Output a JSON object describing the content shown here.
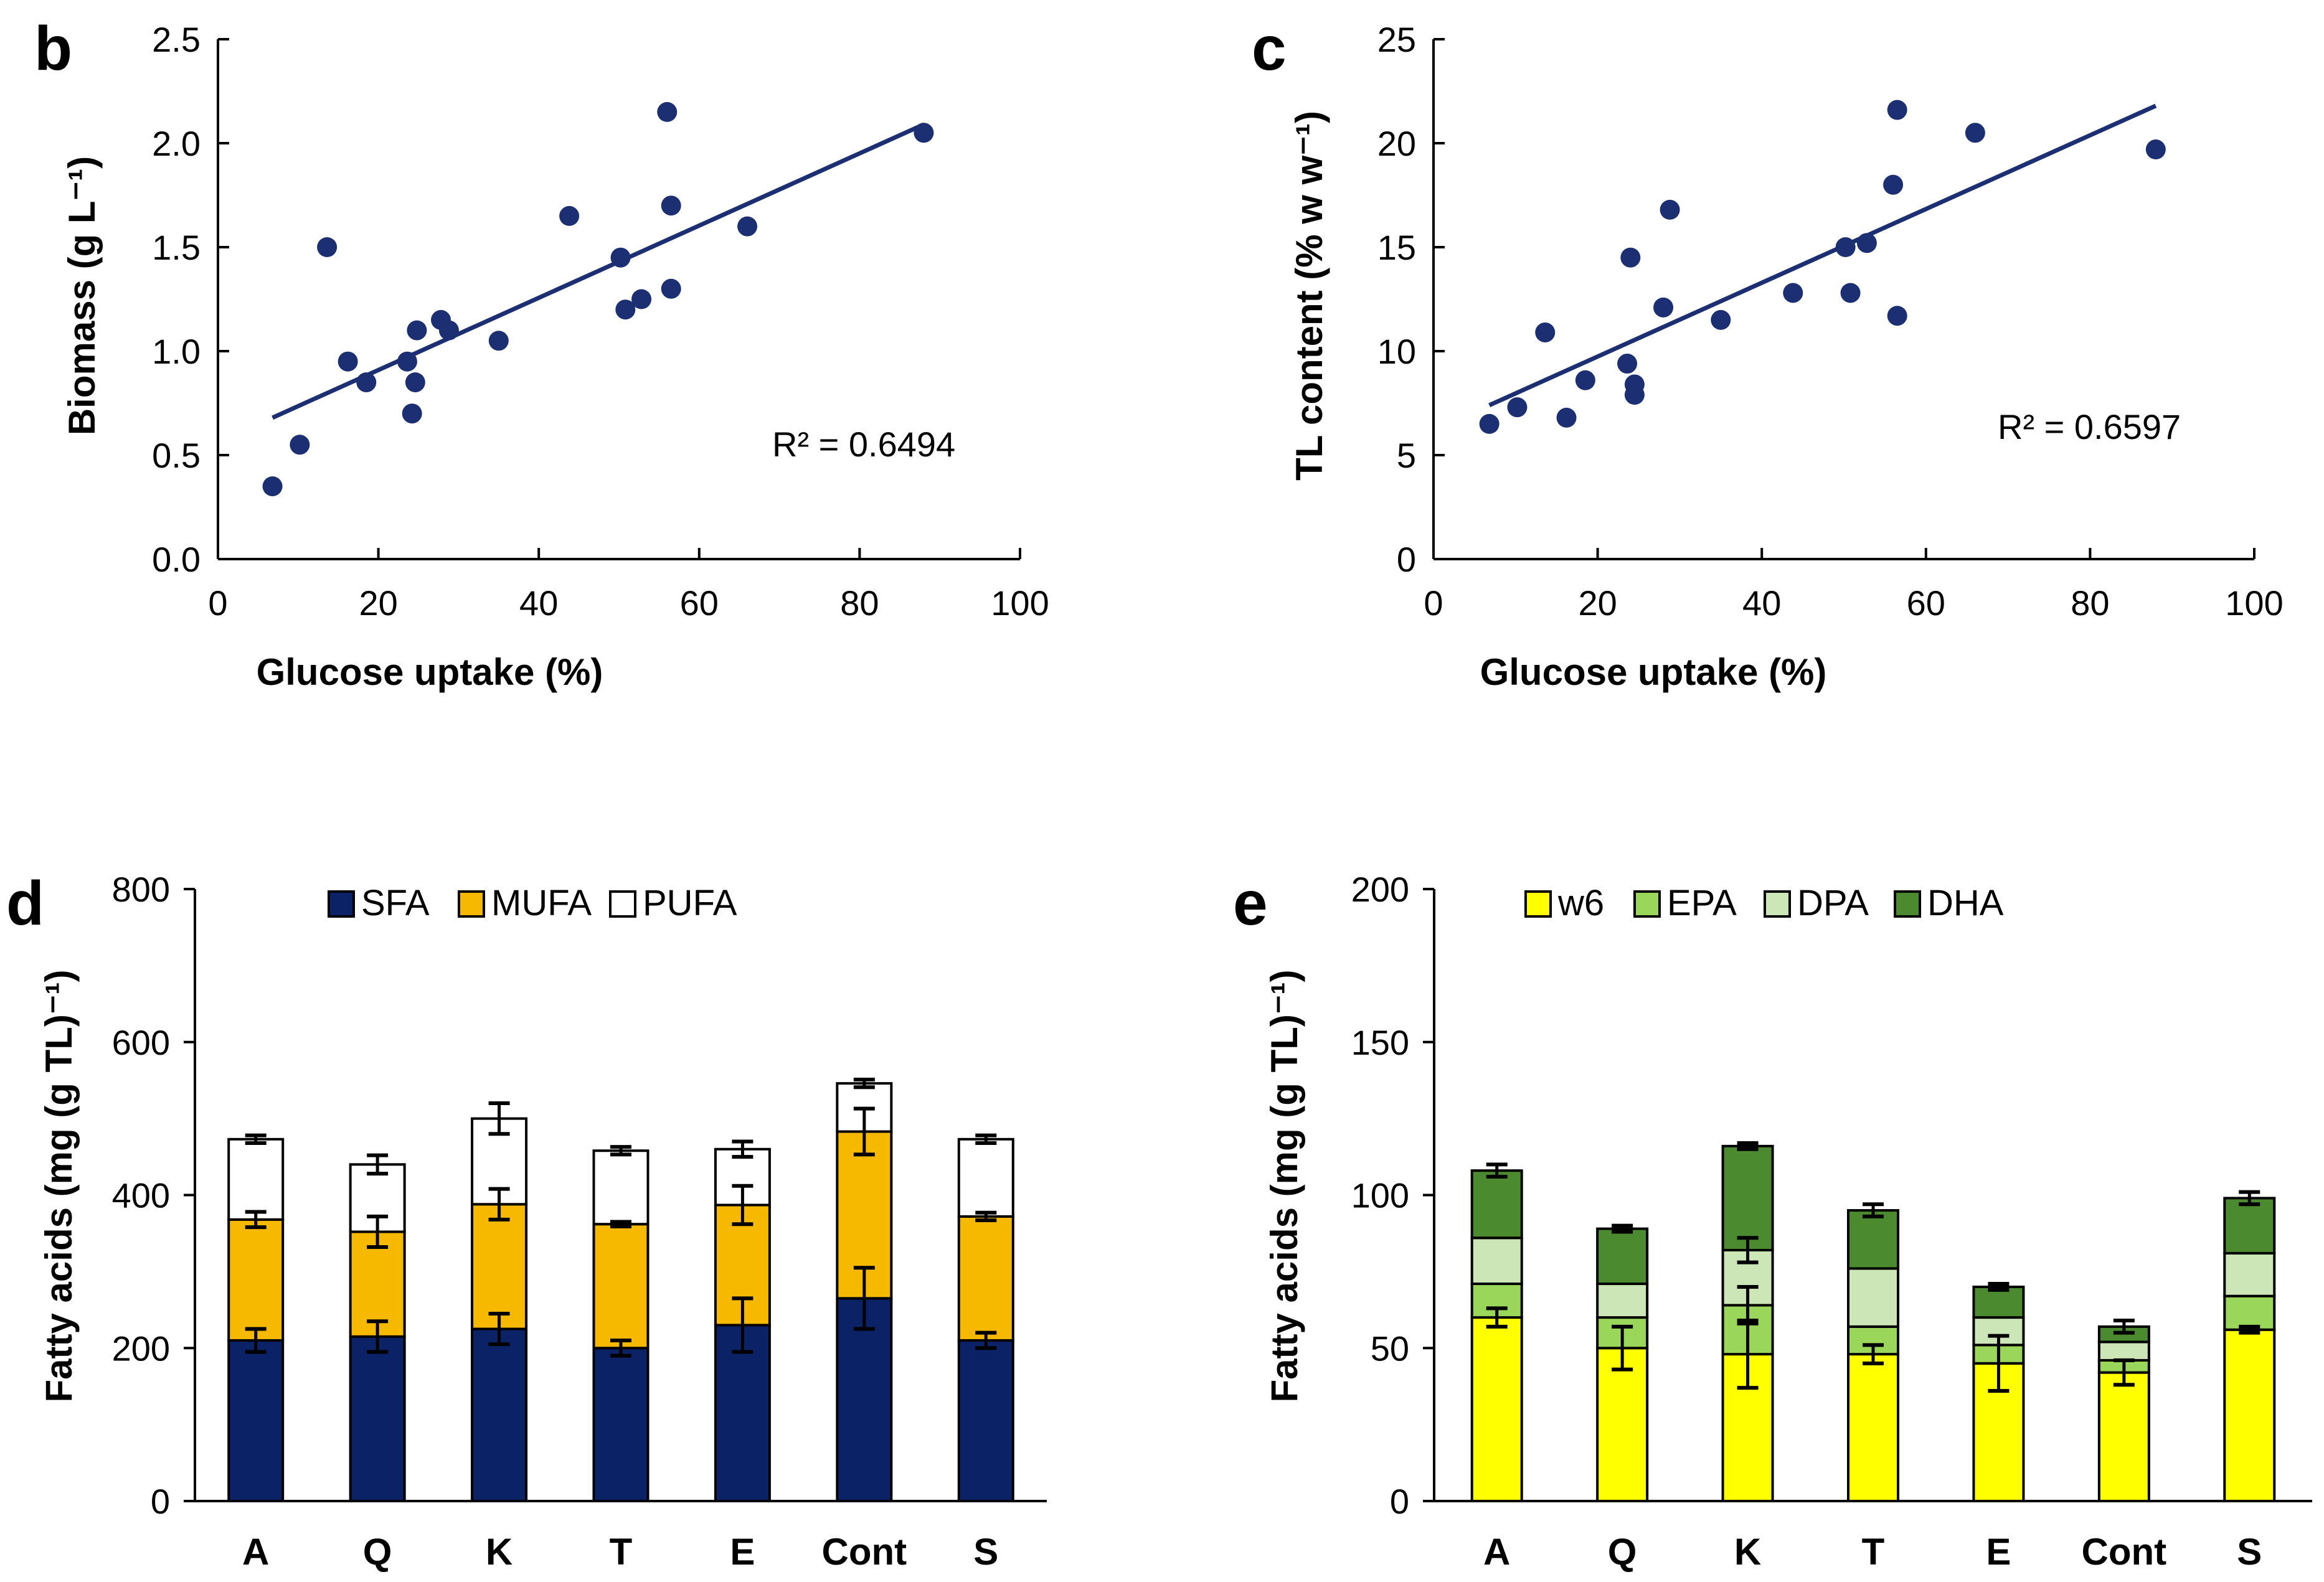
{
  "colors": {
    "dot": "#1c2f73",
    "trend": "#1c2f73",
    "SFA": "#0b2266",
    "MUFA": "#f7b800",
    "PUFA": "#ffffff",
    "w6": "#ffff00",
    "EPA": "#99d65a",
    "DPA": "#cde6b8",
    "DHA": "#4b8a2f"
  },
  "chart_data": [
    {
      "panel": "b",
      "type": "scatter",
      "xlabel": "Glucose uptake (%)",
      "ylabel": "Biomass (g L⁻¹)",
      "xlim": [
        0,
        100
      ],
      "ylim": [
        0,
        2.5
      ],
      "xticks": [
        "0",
        "20",
        "40",
        "60",
        "80",
        "100"
      ],
      "yticks": [
        "0.0",
        "0.5",
        "1.0",
        "1.5",
        "2.0",
        "2.5"
      ],
      "points": [
        [
          6.8,
          0.35
        ],
        [
          10.2,
          0.55
        ],
        [
          13.6,
          1.5
        ],
        [
          16.2,
          0.95
        ],
        [
          18.5,
          0.85
        ],
        [
          23.6,
          0.95
        ],
        [
          24.2,
          0.7
        ],
        [
          24.6,
          0.85
        ],
        [
          24.8,
          1.1
        ],
        [
          27.8,
          1.15
        ],
        [
          28.8,
          1.1
        ],
        [
          35.0,
          1.05
        ],
        [
          43.8,
          1.65
        ],
        [
          50.2,
          1.45
        ],
        [
          50.8,
          1.2
        ],
        [
          52.8,
          1.25
        ],
        [
          56.0,
          2.15
        ],
        [
          56.5,
          1.7
        ],
        [
          56.5,
          1.3
        ],
        [
          66.0,
          1.6
        ],
        [
          88.0,
          2.05
        ]
      ],
      "trendline": {
        "x": [
          6.8,
          88.0
        ],
        "y": [
          0.68,
          2.09
        ]
      },
      "annotation": "R² = 0.6494"
    },
    {
      "panel": "c",
      "type": "scatter",
      "xlabel": "Glucose uptake (%)",
      "ylabel": "TL content (% w w⁻¹)",
      "xlim": [
        0,
        100
      ],
      "ylim": [
        0,
        25
      ],
      "xticks": [
        "0",
        "20",
        "40",
        "60",
        "80",
        "100"
      ],
      "yticks": [
        "0",
        "5",
        "10",
        "15",
        "20",
        "25"
      ],
      "points": [
        [
          6.8,
          6.5
        ],
        [
          10.2,
          7.3
        ],
        [
          13.6,
          10.9
        ],
        [
          16.2,
          6.8
        ],
        [
          18.5,
          8.6
        ],
        [
          23.6,
          9.4
        ],
        [
          24.0,
          14.5
        ],
        [
          24.5,
          8.4
        ],
        [
          24.5,
          7.9
        ],
        [
          28.0,
          12.1
        ],
        [
          28.8,
          16.8
        ],
        [
          35.0,
          11.5
        ],
        [
          43.8,
          12.8
        ],
        [
          50.2,
          15.0
        ],
        [
          50.8,
          12.8
        ],
        [
          52.8,
          15.2
        ],
        [
          56.0,
          18.0
        ],
        [
          56.5,
          21.6
        ],
        [
          56.5,
          11.7
        ],
        [
          66.0,
          20.5
        ],
        [
          88.0,
          19.7
        ]
      ],
      "trendline": {
        "x": [
          6.8,
          88.0
        ],
        "y": [
          7.4,
          21.8
        ]
      },
      "annotation": "R² = 0.6597"
    },
    {
      "panel": "d",
      "type": "bar",
      "stacked": true,
      "ylabel": "Fatty acids (mg (g TL)⁻¹)",
      "ylim": [
        0,
        800
      ],
      "yticks": [
        "0",
        "200",
        "400",
        "600",
        "800"
      ],
      "categories": [
        "A",
        "Q",
        "K",
        "T",
        "E",
        "Cont",
        "S"
      ],
      "series": [
        {
          "name": "SFA",
          "values": [
            210,
            215,
            225,
            200,
            230,
            265,
            210
          ],
          "errors": [
            15,
            20,
            20,
            10,
            35,
            40,
            10
          ]
        },
        {
          "name": "MUFA",
          "values": [
            158,
            137,
            163,
            162,
            157,
            218,
            162
          ],
          "errors": [
            10,
            20,
            20,
            3,
            25,
            30,
            5
          ]
        },
        {
          "name": "PUFA",
          "values": [
            105,
            88,
            112,
            96,
            73,
            63,
            101
          ],
          "errors": [
            5,
            12,
            20,
            5,
            10,
            5,
            5
          ]
        }
      ],
      "legend": [
        "SFA",
        "MUFA",
        "PUFA"
      ]
    },
    {
      "panel": "e",
      "type": "bar",
      "stacked": true,
      "ylabel": "Fatty acids (mg (g TL)⁻¹)",
      "ylim": [
        0,
        200
      ],
      "yticks": [
        "0",
        "50",
        "100",
        "150",
        "200"
      ],
      "categories": [
        "A",
        "Q",
        "K",
        "T",
        "E",
        "Cont",
        "S"
      ],
      "series": [
        {
          "name": "w6",
          "values": [
            60,
            50,
            48,
            48,
            45,
            42,
            56
          ],
          "errors": [
            3,
            7,
            11,
            3,
            9,
            4,
            1
          ]
        },
        {
          "name": "EPA",
          "values": [
            11,
            10,
            16,
            9,
            6,
            4,
            11
          ],
          "errors": [
            0,
            0,
            6,
            0,
            0,
            0,
            0
          ]
        },
        {
          "name": "DPA",
          "values": [
            15,
            11,
            18,
            19,
            9,
            6,
            14
          ],
          "errors": [
            0,
            0,
            4,
            0,
            0,
            0,
            0
          ]
        },
        {
          "name": "DHA",
          "values": [
            22,
            18,
            34,
            19,
            10,
            5,
            18
          ],
          "errors": [
            2,
            1,
            1,
            2,
            1,
            2,
            2
          ]
        }
      ],
      "legend": [
        "w6",
        "EPA",
        "DPA",
        "DHA"
      ]
    }
  ],
  "panels": [
    {
      "letter": "b"
    },
    {
      "letter": "c"
    },
    {
      "letter": "d"
    },
    {
      "letter": "e"
    }
  ]
}
